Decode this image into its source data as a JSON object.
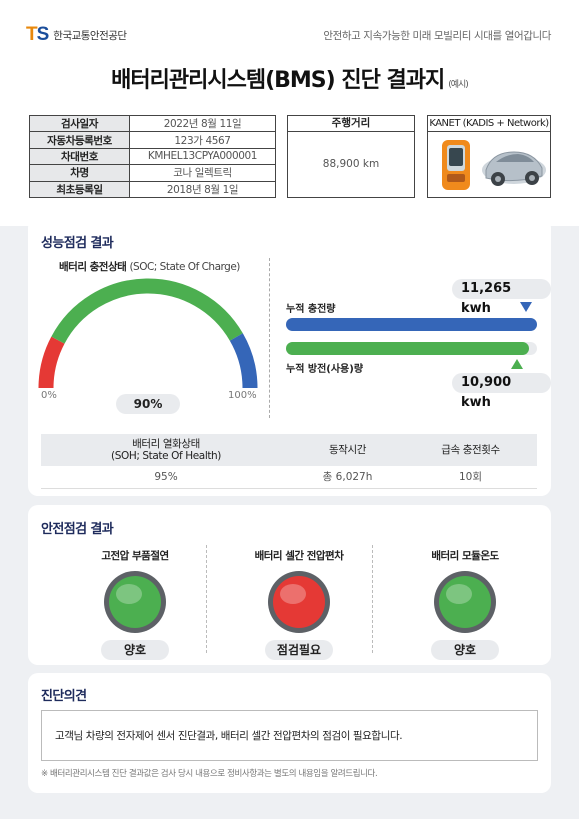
{
  "header": {
    "logo_mark": "TS",
    "org_name": "한국교통안전공단",
    "slogan": "안전하고 지속가능한 미래 모빌리티 시대를 열어갑니다",
    "title": "배터리관리시스템(BMS) 진단 결과지",
    "title_note": "(예시)"
  },
  "vehicle_info": [
    {
      "label": "검사일자",
      "value": "2022년 8월 11일"
    },
    {
      "label": "자동차등록번호",
      "value": "123가 4567"
    },
    {
      "label": "차대번호",
      "value": "KMHEL13CPYA000001"
    },
    {
      "label": "차명",
      "value": "코나 일렉트릭"
    },
    {
      "label": "최초등록일",
      "value": "2018년 8월 1일"
    }
  ],
  "mileage": {
    "label": "주행거리",
    "value": "88,900 km"
  },
  "kanet": {
    "label": "KANET (KADIS + Network)"
  },
  "performance": {
    "title": "성능점검 결과",
    "soc_label": "배터리 충전상태",
    "soc_sub": "(SOC; State Of Charge)",
    "soc_value": "90%",
    "soc_fraction": 0.9,
    "gauge_min": "0%",
    "gauge_max": "100%",
    "charge": {
      "label": "누적 충전량",
      "value": "11,265 kwh",
      "fraction": 1.0
    },
    "discharge": {
      "label": "누적 방전(사용)량",
      "value": "10,900 kwh",
      "fraction": 0.968
    },
    "soh_table": {
      "headers": [
        "배터리 열화상태\n(SOH; State Of Health)",
        "동작시간",
        "급속 충전횟수"
      ],
      "values": [
        "95%",
        "총 6,027h",
        "10회"
      ]
    }
  },
  "safety": {
    "title": "안전점검 결과",
    "items": [
      {
        "label": "고전압 부품절연",
        "status": "양호",
        "color": "#4caf50"
      },
      {
        "label": "배터리 셀간 전압편차",
        "status": "점검필요",
        "color": "#e53935"
      },
      {
        "label": "배터리 모듈온도",
        "status": "양호",
        "color": "#4caf50"
      }
    ]
  },
  "opinion": {
    "title": "진단의견",
    "text": "고객님 차량의 전자제어 센서 진단결과, 배터리 셀간 전압편차의 점검이 필요합니다.",
    "note": "※ 배터리관리시스템 진단 결과값은 검사 당시 내용으로 정비사항과는 별도의 내용임을 알려드립니다."
  },
  "colors": {
    "gauge_red": "#e53935",
    "gauge_green": "#4caf50",
    "gauge_blue": "#3566b8",
    "needle": "#1e2b5c",
    "bar_blue": "#3566b8",
    "bar_green": "#4caf50",
    "title_navy": "#1e2b5c"
  }
}
